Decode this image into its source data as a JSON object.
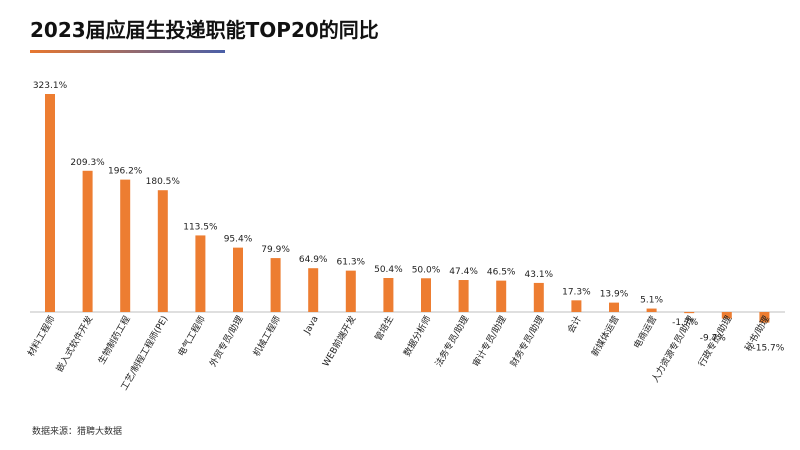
{
  "header": {
    "title": "2023届应届生投递职能TOP20的同比"
  },
  "footer": {
    "source": "数据来源：猎聘大数据"
  },
  "colors": {
    "bar": "#ed7d31",
    "axis": "#bfbfbf",
    "underline_start": "#e8772e",
    "underline_end": "#4a5fa8"
  },
  "chart_data": {
    "type": "bar",
    "title": "2023届应届生投递职能TOP20的同比",
    "categories": [
      "材料工程师",
      "嵌入式软件开发",
      "生物制药工程",
      "工艺/制程工程师(PE)",
      "电气工程师",
      "外贸专员/助理",
      "机械工程师",
      "Java",
      "WEB前端开发",
      "管培生",
      "数据分析师",
      "法务专员/助理",
      "审计专员/助理",
      "财务专员/助理",
      "会计",
      "新媒体运营",
      "电商运营",
      "人力资源专员/助理",
      "行政专员/助理",
      "秘书/助理"
    ],
    "values": [
      323.1,
      209.3,
      196.2,
      180.5,
      113.5,
      95.4,
      79.9,
      64.9,
      61.3,
      50.4,
      50.0,
      47.4,
      46.5,
      43.1,
      17.3,
      13.9,
      5.1,
      -1.7,
      -9.7,
      -15.7
    ],
    "value_labels": [
      "323.1%",
      "209.3%",
      "196.2%",
      "180.5%",
      "113.5%",
      "95.4%",
      "79.9%",
      "64.9%",
      "61.3%",
      "50.4%",
      "50.0%",
      "47.4%",
      "46.5%",
      "43.1%",
      "17.3%",
      "13.9%",
      "5.1%",
      "-1.7%",
      "-9.7%",
      "-15.7%"
    ],
    "unit": "%",
    "grid": false,
    "legend": "none"
  }
}
